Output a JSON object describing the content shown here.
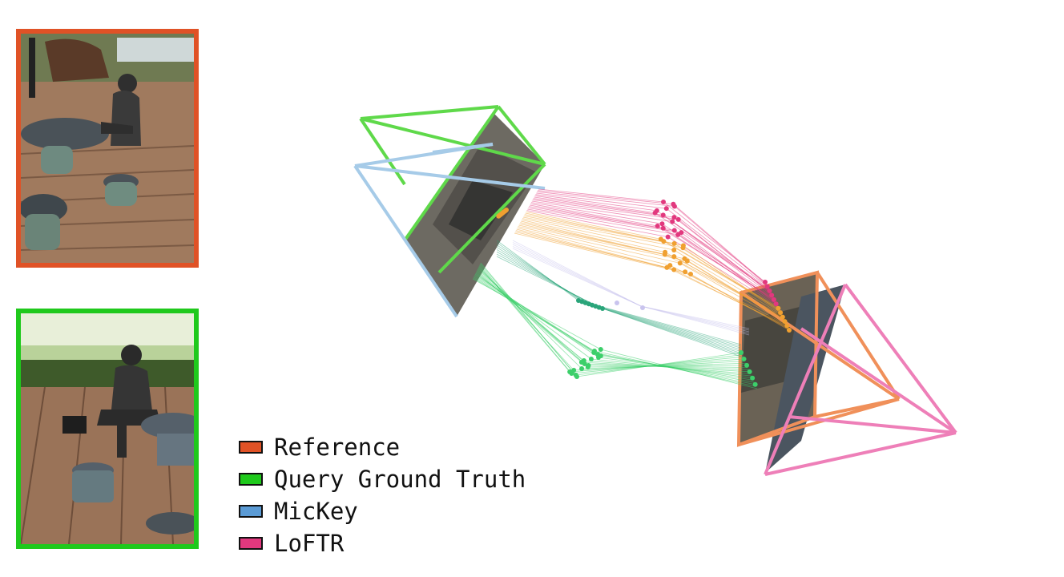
{
  "legend": {
    "items": [
      {
        "label": "Reference",
        "color": "#e05226"
      },
      {
        "label": "Query Ground Truth",
        "color": "#1fc91c"
      },
      {
        "label": "MicKey",
        "color": "#5b9bd5"
      },
      {
        "label": "LoFTR",
        "color": "#e2387e"
      }
    ]
  },
  "colors": {
    "reference": "#e05226",
    "query_gt": "#1fc91c",
    "mickey": "#5b9bd5",
    "loftr": "#e2387e",
    "reference_camera_3d": "#f0905a",
    "query_gt_camera_3d": "#5fd94a",
    "mickey_camera_3d": "#a6cbe8",
    "loftr_camera_3d": "#ee7fb8"
  },
  "icons": {
    "reference_photo": "statue-scene-photo-icon",
    "query_photo": "statue-scene-photo-icon"
  }
}
